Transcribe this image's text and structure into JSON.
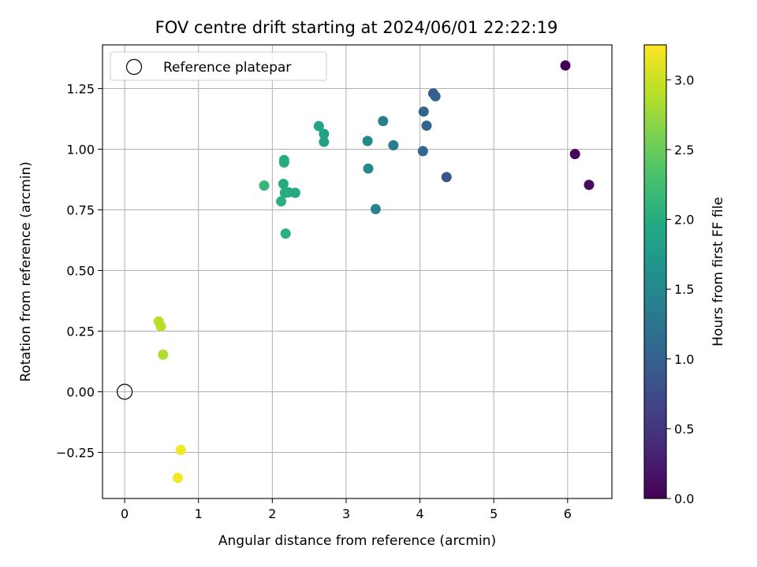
{
  "chart_data": {
    "type": "scatter",
    "title": "FOV centre drift starting at 2024/06/01 22:22:19",
    "xlabel": "Angular distance from reference (arcmin)",
    "ylabel": "Rotation from reference (arcmin)",
    "xlim": [
      -0.3,
      6.6
    ],
    "ylim": [
      -0.44,
      1.43
    ],
    "xticks": [
      0,
      1,
      2,
      3,
      4,
      5,
      6
    ],
    "xtick_labels": [
      "0",
      "1",
      "2",
      "3",
      "4",
      "5",
      "6"
    ],
    "yticks": [
      -0.25,
      0.0,
      0.25,
      0.5,
      0.75,
      1.0,
      1.25
    ],
    "ytick_labels": [
      "−0.25",
      "0.00",
      "0.25",
      "0.50",
      "0.75",
      "1.00",
      "1.25"
    ],
    "grid": true,
    "legend": {
      "placement": "top-left",
      "entries": [
        "Reference platepar"
      ]
    },
    "colorbar": {
      "label": "Hours from first FF file",
      "range": [
        0.0,
        3.25
      ],
      "ticks": [
        0.0,
        0.5,
        1.0,
        1.5,
        2.0,
        2.5,
        3.0
      ],
      "tick_labels": [
        "0.0",
        "0.5",
        "1.0",
        "1.5",
        "2.0",
        "2.5",
        "3.0"
      ],
      "colormap": "viridis"
    },
    "reference_point": {
      "name": "Reference platepar",
      "x": 0.0,
      "y": 0.0
    },
    "points": [
      {
        "x": 5.97,
        "y": 1.345,
        "hours": 0.0
      },
      {
        "x": 6.1,
        "y": 0.98,
        "hours": 0.05
      },
      {
        "x": 6.29,
        "y": 0.853,
        "hours": 0.1
      },
      {
        "x": 4.36,
        "y": 0.885,
        "hours": 0.85
      },
      {
        "x": 4.18,
        "y": 1.23,
        "hours": 0.95
      },
      {
        "x": 4.21,
        "y": 1.218,
        "hours": 1.0
      },
      {
        "x": 4.09,
        "y": 1.097,
        "hours": 1.05
      },
      {
        "x": 4.05,
        "y": 1.155,
        "hours": 1.05
      },
      {
        "x": 4.04,
        "y": 0.992,
        "hours": 1.1
      },
      {
        "x": 3.64,
        "y": 1.016,
        "hours": 1.35
      },
      {
        "x": 3.5,
        "y": 1.116,
        "hours": 1.4
      },
      {
        "x": 3.4,
        "y": 0.753,
        "hours": 1.45
      },
      {
        "x": 3.29,
        "y": 1.034,
        "hours": 1.55
      },
      {
        "x": 3.3,
        "y": 0.92,
        "hours": 1.55
      },
      {
        "x": 2.7,
        "y": 1.063,
        "hours": 1.85
      },
      {
        "x": 2.7,
        "y": 1.03,
        "hours": 1.85
      },
      {
        "x": 2.63,
        "y": 1.095,
        "hours": 1.9
      },
      {
        "x": 2.31,
        "y": 0.82,
        "hours": 1.95
      },
      {
        "x": 2.22,
        "y": 0.822,
        "hours": 1.95
      },
      {
        "x": 2.16,
        "y": 0.955,
        "hours": 2.0
      },
      {
        "x": 2.16,
        "y": 0.945,
        "hours": 2.0
      },
      {
        "x": 2.15,
        "y": 0.857,
        "hours": 2.0
      },
      {
        "x": 2.17,
        "y": 0.82,
        "hours": 2.0
      },
      {
        "x": 2.12,
        "y": 0.785,
        "hours": 2.05
      },
      {
        "x": 2.18,
        "y": 0.652,
        "hours": 2.05
      },
      {
        "x": 1.89,
        "y": 0.85,
        "hours": 2.15
      },
      {
        "x": 0.46,
        "y": 0.29,
        "hours": 2.9
      },
      {
        "x": 0.49,
        "y": 0.27,
        "hours": 2.9
      },
      {
        "x": 0.52,
        "y": 0.153,
        "hours": 2.85
      },
      {
        "x": 0.76,
        "y": -0.24,
        "hours": 3.2
      },
      {
        "x": 0.72,
        "y": -0.355,
        "hours": 3.22
      }
    ]
  }
}
